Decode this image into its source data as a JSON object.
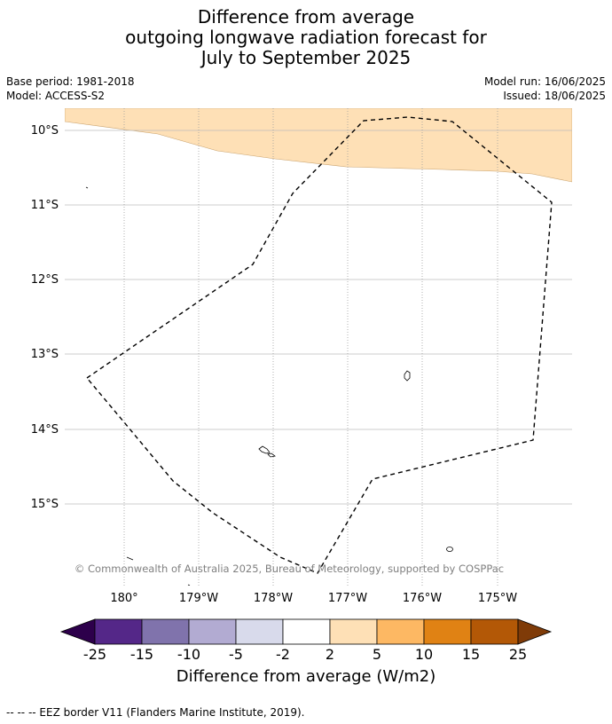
{
  "title": {
    "line1": "Difference from average",
    "line2": "outgoing longwave radiation forecast for",
    "line3": "July to September 2025"
  },
  "meta": {
    "base_period": "Base period: 1981-2018",
    "model": "Model: ACCESS-S2",
    "model_run": "Model run: 16/06/2025",
    "issued": "Issued: 18/06/2025"
  },
  "map": {
    "lat_labels": [
      "10°S",
      "11°S",
      "12°S",
      "13°S",
      "14°S",
      "15°S"
    ],
    "lon_labels": [
      "180°",
      "179°W",
      "178°W",
      "177°W",
      "176°W",
      "175°W"
    ],
    "copyright": "© Commonwealth of Australia 2025, Bureau of Meteorology, supported by COSPPac",
    "anomaly_fill_color": "#fee0b6",
    "anomaly_category": "2 to 5"
  },
  "colorbar": {
    "tick_labels": [
      "-25",
      "-15",
      "-10",
      "-5",
      "-2",
      "2",
      "5",
      "10",
      "15",
      "25"
    ],
    "colors": [
      "#2d004b",
      "#542788",
      "#8073ac",
      "#b2abd2",
      "#d8daeb",
      "#ffffff",
      "#fee0b6",
      "#fdb863",
      "#e08214",
      "#b35806",
      "#7f3b08"
    ],
    "label": "Difference from average (W/m2)"
  },
  "footnote": "--  --  -- EEZ border V11 (Flanders Marine Institute, 2019)."
}
